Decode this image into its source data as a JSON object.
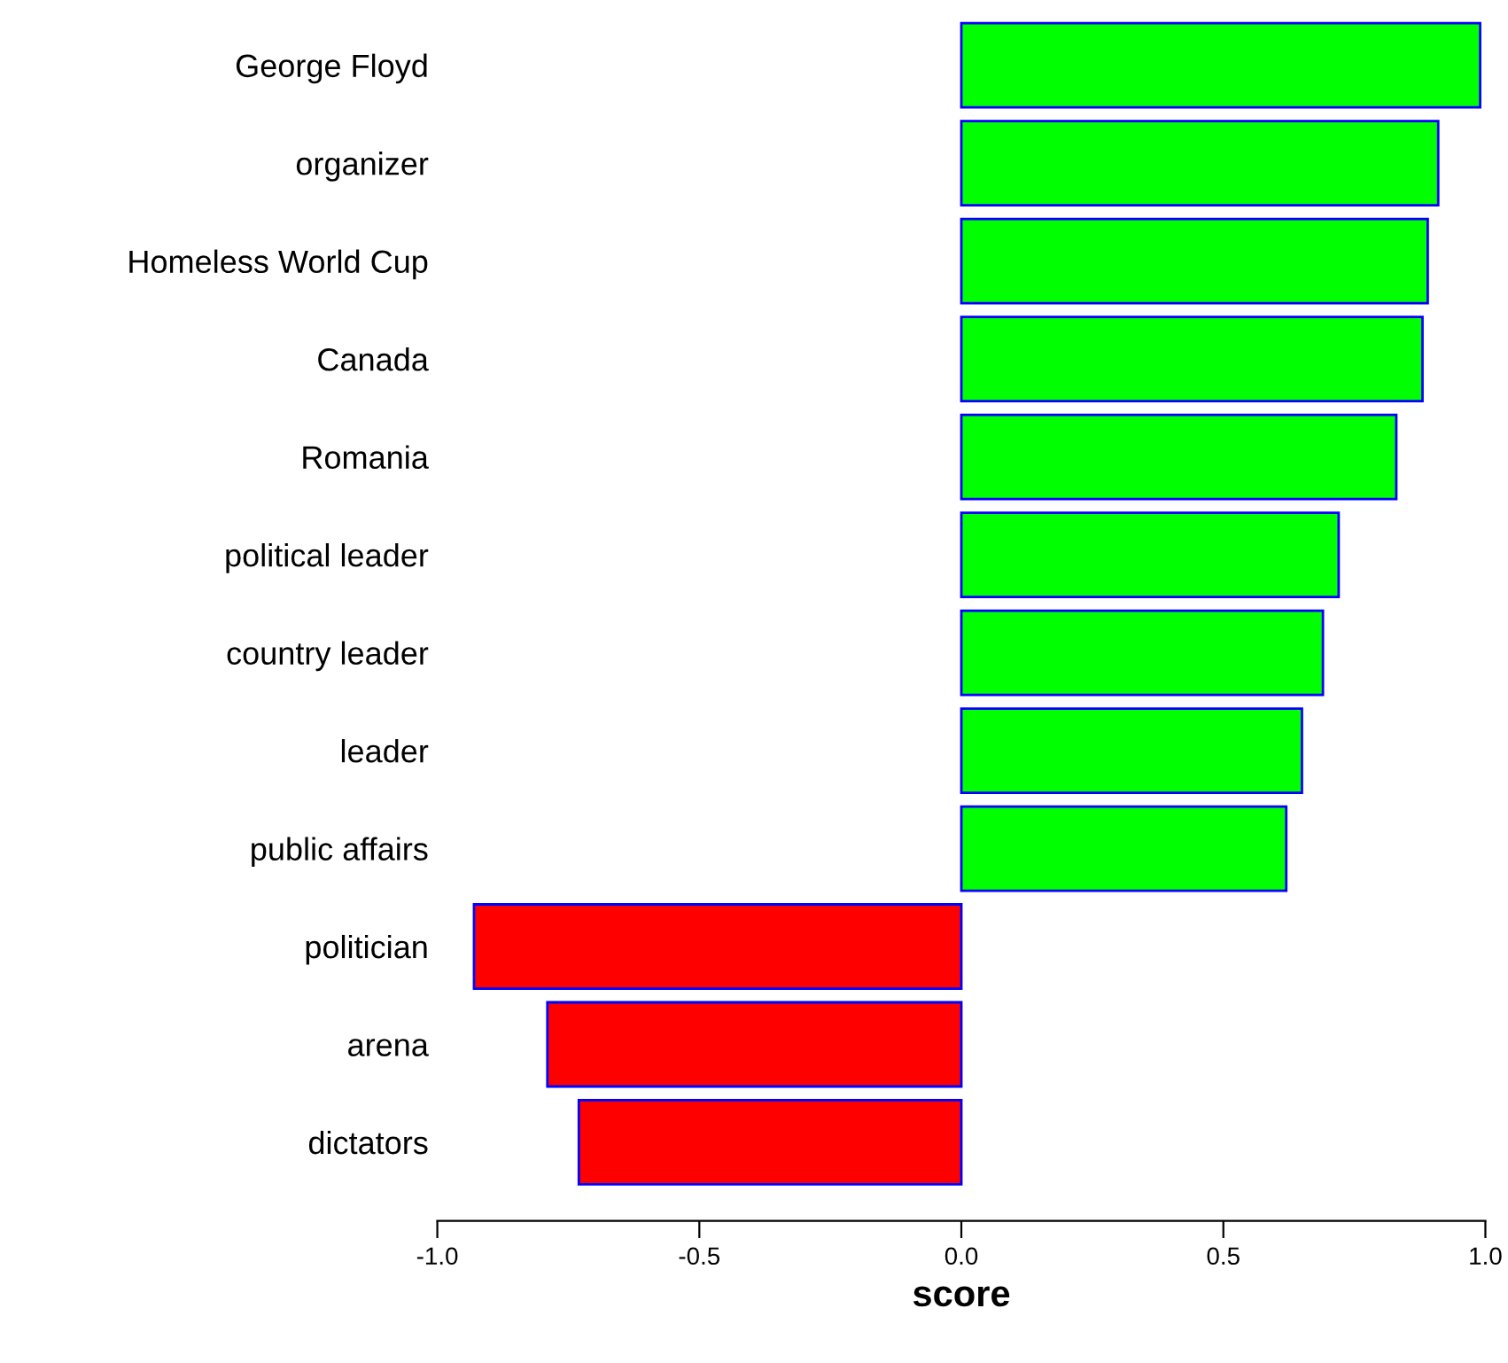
{
  "chart_data": {
    "type": "bar",
    "orientation": "horizontal",
    "xlabel": "score",
    "categories": [
      "George Floyd",
      "organizer",
      "Homeless World Cup",
      "Canada",
      "Romania",
      "political leader",
      "country leader",
      "leader",
      "public affairs",
      "politician",
      "arena",
      "dictators"
    ],
    "values": [
      0.99,
      0.91,
      0.89,
      0.88,
      0.83,
      0.72,
      0.69,
      0.65,
      0.62,
      -0.93,
      -0.79,
      -0.73
    ],
    "colors": [
      "#00ff00",
      "#00ff00",
      "#00ff00",
      "#00ff00",
      "#00ff00",
      "#00ff00",
      "#00ff00",
      "#00ff00",
      "#00ff00",
      "#ff0000",
      "#ff0000",
      "#ff0000"
    ],
    "xlim": [
      -1.0,
      1.0
    ],
    "xticks": [
      {
        "value": -1.0,
        "label": "-1.0"
      },
      {
        "value": -0.5,
        "label": "-0.5"
      },
      {
        "value": 0.0,
        "label": "0.0"
      },
      {
        "value": 0.5,
        "label": "0.5"
      },
      {
        "value": 1.0,
        "label": "1.0"
      }
    ],
    "grid": false,
    "legend": false
  }
}
